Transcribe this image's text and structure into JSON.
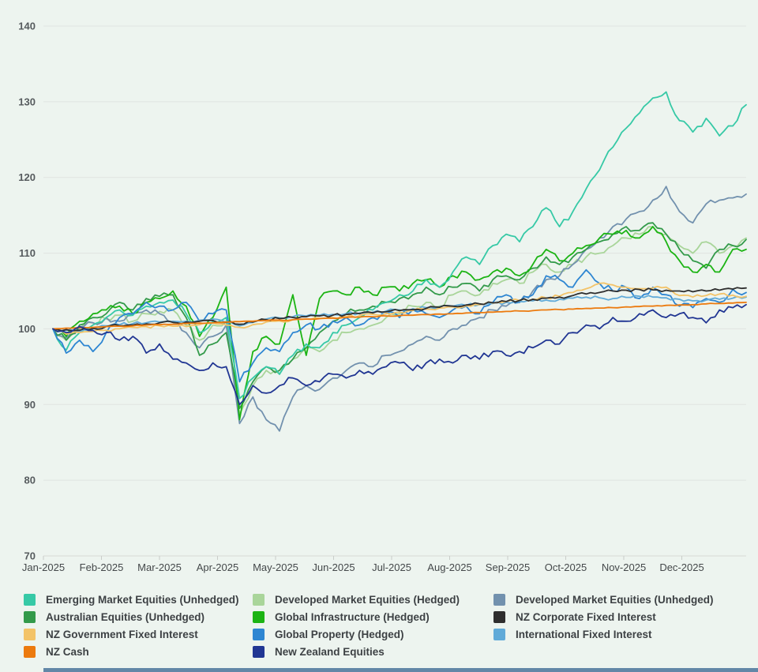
{
  "colors": {
    "background": "#edf4ef",
    "gridline": "#e0e3e0",
    "axis_line": "#d6dad6",
    "tick": "#c9cdc9",
    "axis_text": "#565b5e",
    "legend_text": "#3d4144",
    "bottom_bar": "#6287a7"
  },
  "chart_data": {
    "type": "line",
    "title": "",
    "xlabel": "",
    "ylabel": "",
    "ylim": [
      70,
      140
    ],
    "y_ticks": [
      70,
      80,
      90,
      100,
      110,
      120,
      130,
      140
    ],
    "x_tick_labels": [
      "Jan-2025",
      "Feb-2025",
      "Mar-2025",
      "Apr-2025",
      "May-2025",
      "Jun-2025",
      "Jul-2025",
      "Aug-2025",
      "Sep-2025",
      "Oct-2025",
      "Nov-2025",
      "Dec-2025"
    ],
    "x_unit": "week_of_2025",
    "x": [
      0,
      1,
      2,
      3,
      4,
      5,
      6,
      7,
      8,
      9,
      10,
      11,
      12,
      13,
      14,
      15,
      16,
      17,
      18,
      19,
      20,
      21,
      22,
      23,
      24,
      25,
      26,
      27,
      28,
      29,
      30,
      31,
      32,
      33,
      34,
      35,
      36,
      37,
      38,
      39,
      40,
      41,
      42,
      43,
      44,
      45,
      46,
      47,
      48,
      49,
      50,
      51,
      52
    ],
    "grid": "horizontal",
    "legend_position": "bottom",
    "legend_columns": [
      [
        0,
        1,
        2,
        3
      ],
      [
        4,
        5,
        6,
        7
      ],
      [
        8,
        9,
        10
      ]
    ],
    "series": [
      {
        "name": "Emerging Market Equities (Unhedged)",
        "color": "#36c9a6",
        "values": [
          100,
          97.2,
          99.5,
          100.5,
          101.5,
          102.5,
          101.8,
          103,
          103.5,
          103.8,
          102,
          99.5,
          101,
          101.5,
          90.8,
          93.5,
          95,
          94,
          96.5,
          98,
          97.5,
          99.5,
          100.5,
          101.5,
          102.5,
          103.5,
          104.5,
          105,
          106.5,
          105.5,
          107.5,
          109.5,
          108.5,
          111,
          112.5,
          111.5,
          113.5,
          116,
          113.5,
          115.5,
          118.5,
          121,
          124,
          126.5,
          128.5,
          130.5,
          131.3,
          127.5,
          126,
          127.8,
          125.5,
          126.8,
          129.6
        ]
      },
      {
        "name": "Australian Equities (Unhedged)",
        "color": "#339a4a",
        "values": [
          100,
          98.5,
          100.5,
          101.5,
          102,
          103.5,
          102.5,
          104,
          104.3,
          104.5,
          101.5,
          96.5,
          98,
          99.5,
          89.5,
          93,
          95,
          94.5,
          96,
          97.5,
          99.5,
          101,
          102,
          102.5,
          103,
          103.5,
          104,
          104.5,
          105.5,
          104.5,
          105.5,
          106,
          105,
          106.5,
          107,
          106.5,
          108,
          109.5,
          108.5,
          109.5,
          110.5,
          111.5,
          112.5,
          113.5,
          113,
          114,
          112.5,
          110.5,
          109,
          108,
          110.5,
          111,
          111.8
        ]
      },
      {
        "name": "NZ Government Fixed Interest",
        "color": "#f3c368",
        "values": [
          100,
          99.3,
          99.5,
          99.65,
          99.8,
          100,
          100.2,
          100.3,
          100.4,
          100.35,
          100.3,
          100.55,
          100.8,
          100.5,
          100.2,
          100.55,
          100.9,
          101.05,
          101.2,
          101.3,
          101.4,
          101.5,
          101.6,
          101.75,
          101.9,
          102.05,
          102.2,
          102.4,
          102.6,
          102.75,
          102.9,
          103.05,
          103.2,
          103.4,
          103.6,
          103.75,
          103.9,
          104.1,
          104.3,
          104.8,
          105.3,
          106,
          105.8,
          105.5,
          105.3,
          105.4,
          105.5,
          104.4,
          104.2,
          104.4,
          104.6,
          104.45,
          104.3
        ]
      },
      {
        "name": "NZ Cash",
        "color": "#ec7a0e",
        "values": [
          100,
          100.1,
          100.15,
          100.2,
          100.3,
          100.35,
          100.4,
          100.5,
          100.55,
          100.6,
          100.7,
          100.75,
          100.8,
          100.9,
          100.95,
          101,
          101.1,
          101.15,
          101.2,
          101.3,
          101.35,
          101.4,
          101.5,
          101.55,
          101.6,
          101.7,
          101.75,
          101.8,
          101.9,
          101.95,
          102,
          102.1,
          102.15,
          102.2,
          102.3,
          102.35,
          102.4,
          102.5,
          102.55,
          102.6,
          102.7,
          102.75,
          102.8,
          102.9,
          102.95,
          103,
          103.1,
          103.15,
          103.2,
          103.3,
          103.35,
          103.4,
          103.5
        ]
      },
      {
        "name": "Developed Market Equities (Hedged)",
        "color": "#a9d59a",
        "values": [
          100,
          98.5,
          100,
          100.8,
          101.3,
          101.8,
          101,
          102,
          102.3,
          102.5,
          100.5,
          98.5,
          100.5,
          101,
          88.7,
          92.5,
          94.5,
          94,
          96,
          97.5,
          97,
          98.5,
          99.5,
          100,
          100.5,
          101.5,
          102,
          103,
          103.5,
          103,
          104.5,
          105,
          104.5,
          106,
          106.5,
          106,
          107.5,
          108.5,
          107.5,
          108.5,
          109.5,
          110,
          111,
          112,
          112.5,
          113.5,
          112.5,
          111,
          110,
          111.5,
          110,
          111,
          112
        ]
      },
      {
        "name": "Global Infrastructure (Hedged)",
        "color": "#1cb414",
        "values": [
          100,
          99,
          101,
          102,
          102.5,
          103,
          102,
          103.5,
          104,
          105,
          103,
          99,
          101.5,
          105.5,
          88,
          97,
          99,
          98,
          104.5,
          96.5,
          104,
          105,
          104.5,
          105.5,
          104.5,
          105.5,
          105,
          106,
          106.5,
          105.5,
          107,
          107.5,
          106.5,
          107.5,
          108,
          107,
          108.5,
          110.5,
          109,
          110,
          111,
          112,
          112.5,
          113,
          112,
          113.5,
          111.5,
          109,
          107.5,
          108.5,
          107.5,
          110.5,
          110.5
        ]
      },
      {
        "name": "Global Property (Hedged)",
        "color": "#2e86d2",
        "values": [
          100,
          96.8,
          98.5,
          97,
          99.5,
          101.5,
          102,
          103.5,
          103,
          102.5,
          103.5,
          101,
          102,
          102.5,
          93,
          95.5,
          97.5,
          97,
          99.5,
          100.5,
          100,
          101,
          101.5,
          100.5,
          101.5,
          102,
          101.5,
          102.5,
          102,
          101.5,
          102.5,
          103,
          102,
          103.5,
          104.5,
          103.5,
          104.5,
          107,
          106.5,
          105.5,
          107.8,
          106,
          105,
          105.5,
          104,
          105.5,
          104.5,
          103,
          102.8,
          104,
          103.5,
          105.2,
          104.8
        ]
      },
      {
        "name": "New Zealand Equities",
        "color": "#213693",
        "values": [
          100,
          99.5,
          100.3,
          99.8,
          99.5,
          98.5,
          99,
          96.8,
          98,
          96,
          95.5,
          94.5,
          95.5,
          95,
          90,
          92.5,
          91.5,
          92.5,
          93.5,
          92.5,
          93,
          94,
          93.5,
          94.5,
          94,
          95,
          95.5,
          94.5,
          95.5,
          96,
          95.5,
          96.5,
          96,
          97,
          96.5,
          97,
          97.5,
          98.5,
          98,
          99.5,
          100.5,
          100,
          101.5,
          101,
          102,
          102.5,
          101.5,
          102,
          101.5,
          100.8,
          102.5,
          102.8,
          103.2
        ]
      },
      {
        "name": "Developed Market Equities (Unhedged)",
        "color": "#7291ae",
        "values": [
          100,
          98.8,
          100.2,
          100.8,
          101.5,
          101,
          102,
          102.5,
          102,
          101,
          99.5,
          97.5,
          99,
          100.5,
          87.5,
          91,
          88,
          86.5,
          91,
          92.5,
          92,
          93.5,
          94.5,
          95.5,
          95,
          96.5,
          97,
          98,
          99,
          98.5,
          100,
          100.5,
          101.5,
          102.5,
          103,
          103.5,
          105,
          106.5,
          107,
          108.5,
          110.5,
          112,
          113.5,
          114.5,
          115.5,
          117,
          118.8,
          115.5,
          114,
          116.5,
          117,
          117.3,
          117.8
        ]
      },
      {
        "name": "NZ Corporate Fixed Interest",
        "color": "#2e2e2e",
        "values": [
          100,
          99.9,
          99.8,
          100.05,
          100.3,
          100.4,
          100.5,
          100.65,
          100.8,
          100.85,
          100.9,
          101,
          101.1,
          100.85,
          100.6,
          100.9,
          101.2,
          101.35,
          101.5,
          101.6,
          101.7,
          101.8,
          101.9,
          102,
          102.1,
          102.25,
          102.4,
          102.55,
          102.7,
          102.85,
          103,
          103.15,
          103.3,
          103.45,
          103.6,
          103.75,
          103.9,
          104.05,
          104.2,
          104.4,
          104.6,
          104.8,
          105,
          105.1,
          105.2,
          105.15,
          105.1,
          105,
          104.9,
          105,
          105.1,
          105.25,
          105.4
        ]
      },
      {
        "name": "International Fixed Interest",
        "color": "#60aad8",
        "values": [
          100,
          99.8,
          99.6,
          100,
          100.4,
          100.55,
          100.7,
          100.8,
          100.9,
          100.95,
          101,
          101.15,
          101.3,
          100.85,
          100.4,
          100.85,
          101.3,
          101.45,
          101.6,
          101.7,
          101.8,
          101.9,
          102,
          102.1,
          102.2,
          102.35,
          102.5,
          102.65,
          102.8,
          102.9,
          103,
          103.1,
          103.2,
          103.35,
          103.5,
          103.6,
          103.7,
          103.8,
          103.9,
          104.05,
          104.2,
          104.1,
          104,
          104.15,
          104.3,
          104.2,
          104.1,
          103.9,
          103.7,
          103.8,
          103.9,
          104.05,
          104.2
        ]
      }
    ]
  }
}
